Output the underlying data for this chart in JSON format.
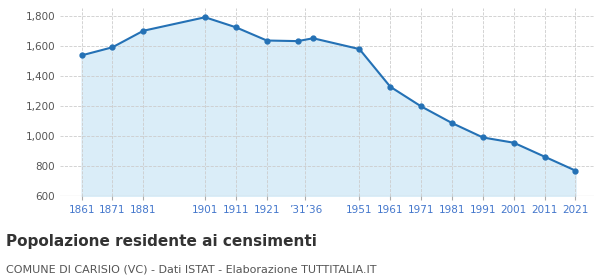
{
  "years": [
    1861,
    1871,
    1881,
    1901,
    1911,
    1921,
    1931,
    1936,
    1951,
    1961,
    1971,
    1981,
    1991,
    2001,
    2011,
    2021
  ],
  "population": [
    1537,
    1591,
    1701,
    1791,
    1724,
    1636,
    1632,
    1651,
    1579,
    1328,
    1197,
    1086,
    990,
    955,
    862,
    769
  ],
  "xtick_positions": [
    1861,
    1871,
    1881,
    1901,
    1911,
    1921,
    1933.5,
    1951,
    1961,
    1971,
    1981,
    1991,
    2001,
    2011,
    2021
  ],
  "xtick_labels": [
    "1861",
    "1871",
    "1881",
    "1901",
    "1911",
    "1921",
    "’31’36",
    "1951",
    "1961",
    "1971",
    "1981",
    "1991",
    "2001",
    "2011",
    "2021"
  ],
  "line_color": "#2471b5",
  "fill_color": "#daedf8",
  "marker_color": "#2471b5",
  "bg_color": "#ffffff",
  "grid_color": "#cccccc",
  "title": "Popolazione residente ai censimenti",
  "subtitle": "COMUNE DI CARISIO (VC) - Dati ISTAT - Elaborazione TUTTITALIA.IT",
  "ylim": [
    600,
    1850
  ],
  "yticks": [
    600,
    800,
    1000,
    1200,
    1400,
    1600,
    1800
  ],
  "title_fontsize": 11,
  "subtitle_fontsize": 8,
  "tick_label_color": "#4477cc",
  "ytick_label_color": "#555555"
}
